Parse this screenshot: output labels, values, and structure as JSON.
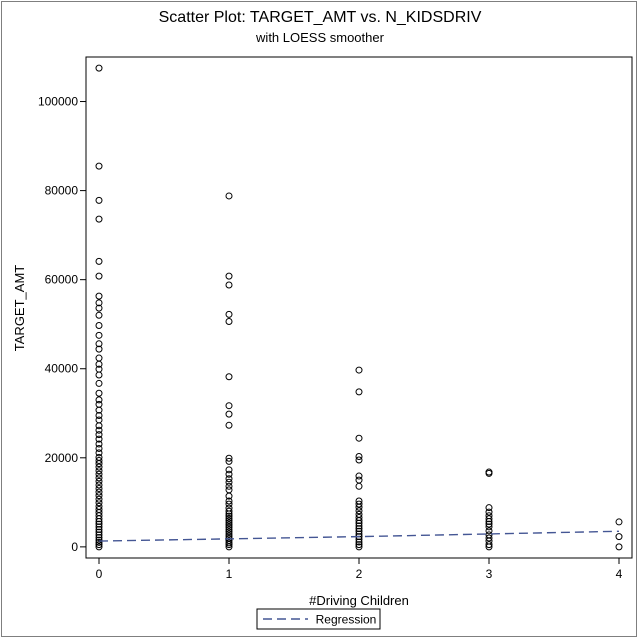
{
  "chart_data": {
    "type": "scatter",
    "title": "Scatter Plot: TARGET_AMT vs. N_KIDSDRIV",
    "subtitle": "with LOESS smoother",
    "xlabel": "#Driving Children",
    "ylabel": "TARGET_AMT",
    "xlim": [
      -0.1,
      4.1
    ],
    "ylim": [
      -2500,
      110000
    ],
    "x_ticks": [
      0,
      1,
      2,
      3,
      4
    ],
    "y_ticks": [
      0,
      20000,
      40000,
      60000,
      80000,
      100000
    ],
    "grid": false,
    "legend_position": "bottom-center",
    "colors": {
      "points": "#000000",
      "regression": "#445694",
      "frame": "#7f7f7f"
    },
    "series": [
      {
        "type": "scatter",
        "points": [
          [
            0,
            107500
          ],
          [
            0,
            85500
          ],
          [
            0,
            77800
          ],
          [
            0,
            73600
          ],
          [
            0,
            64100
          ],
          [
            0,
            60800
          ],
          [
            0,
            56300
          ],
          [
            0,
            54800
          ],
          [
            0,
            53600
          ],
          [
            0,
            52000
          ],
          [
            0,
            49700
          ],
          [
            0,
            47500
          ],
          [
            0,
            45600
          ],
          [
            0,
            44400
          ],
          [
            0,
            42400
          ],
          [
            0,
            41000
          ],
          [
            0,
            39900
          ],
          [
            0,
            38600
          ],
          [
            0,
            36700
          ],
          [
            0,
            34500
          ],
          [
            0,
            33000
          ],
          [
            0,
            32000
          ],
          [
            0,
            30700
          ],
          [
            0,
            29500
          ],
          [
            0,
            28500
          ],
          [
            0,
            27200
          ],
          [
            0,
            26200
          ],
          [
            0,
            25200
          ],
          [
            0,
            24200
          ],
          [
            0,
            23100
          ],
          [
            0,
            22100
          ],
          [
            0,
            21100
          ],
          [
            0,
            20100
          ],
          [
            0,
            19400
          ],
          [
            0,
            18700
          ],
          [
            0,
            17900
          ],
          [
            0,
            17100
          ],
          [
            0,
            16300
          ],
          [
            0,
            15500
          ],
          [
            0,
            14700
          ],
          [
            0,
            13900
          ],
          [
            0,
            13100
          ],
          [
            0,
            12300
          ],
          [
            0,
            11500
          ],
          [
            0,
            10700
          ],
          [
            0,
            9900
          ],
          [
            0,
            9100
          ],
          [
            0,
            8400
          ],
          [
            0,
            7700
          ],
          [
            0,
            7000
          ],
          [
            0,
            6300
          ],
          [
            0,
            5700
          ],
          [
            0,
            5100
          ],
          [
            0,
            4500
          ],
          [
            0,
            3900
          ],
          [
            0,
            3300
          ],
          [
            0,
            2700
          ],
          [
            0,
            2100
          ],
          [
            0,
            1500
          ],
          [
            0,
            1000
          ],
          [
            0,
            500
          ],
          [
            0,
            0
          ],
          [
            1,
            78800
          ],
          [
            1,
            60800
          ],
          [
            1,
            58800
          ],
          [
            1,
            52200
          ],
          [
            1,
            50600
          ],
          [
            1,
            38200
          ],
          [
            1,
            31700
          ],
          [
            1,
            29800
          ],
          [
            1,
            27300
          ],
          [
            1,
            19900
          ],
          [
            1,
            19200
          ],
          [
            1,
            17300
          ],
          [
            1,
            16300
          ],
          [
            1,
            15300
          ],
          [
            1,
            14500
          ],
          [
            1,
            13600
          ],
          [
            1,
            12800
          ],
          [
            1,
            11400
          ],
          [
            1,
            10300
          ],
          [
            1,
            9600
          ],
          [
            1,
            8700
          ],
          [
            1,
            8000
          ],
          [
            1,
            7400
          ],
          [
            1,
            6900
          ],
          [
            1,
            6400
          ],
          [
            1,
            5900
          ],
          [
            1,
            5400
          ],
          [
            1,
            4900
          ],
          [
            1,
            4400
          ],
          [
            1,
            3900
          ],
          [
            1,
            3400
          ],
          [
            1,
            2900
          ],
          [
            1,
            2400
          ],
          [
            1,
            1900
          ],
          [
            1,
            1400
          ],
          [
            1,
            900
          ],
          [
            1,
            500
          ],
          [
            1,
            0
          ],
          [
            2,
            39700
          ],
          [
            2,
            34800
          ],
          [
            2,
            24400
          ],
          [
            2,
            20300
          ],
          [
            2,
            19500
          ],
          [
            2,
            15900
          ],
          [
            2,
            15000
          ],
          [
            2,
            13600
          ],
          [
            2,
            10300
          ],
          [
            2,
            9600
          ],
          [
            2,
            8900
          ],
          [
            2,
            8100
          ],
          [
            2,
            7300
          ],
          [
            2,
            6600
          ],
          [
            2,
            5900
          ],
          [
            2,
            5300
          ],
          [
            2,
            4700
          ],
          [
            2,
            4100
          ],
          [
            2,
            3500
          ],
          [
            2,
            2900
          ],
          [
            2,
            2300
          ],
          [
            2,
            1700
          ],
          [
            2,
            1100
          ],
          [
            2,
            500
          ],
          [
            2,
            0
          ],
          [
            3,
            16800
          ],
          [
            3,
            16500
          ],
          [
            3,
            8800
          ],
          [
            3,
            7800
          ],
          [
            3,
            7000
          ],
          [
            3,
            6300
          ],
          [
            3,
            5700
          ],
          [
            3,
            5100
          ],
          [
            3,
            4500
          ],
          [
            3,
            3600
          ],
          [
            3,
            2700
          ],
          [
            3,
            2000
          ],
          [
            3,
            1300
          ],
          [
            3,
            500
          ],
          [
            3,
            0
          ],
          [
            4,
            5600
          ],
          [
            4,
            2300
          ],
          [
            4,
            0
          ]
        ]
      },
      {
        "name": "Regression",
        "type": "line",
        "style": "dashed",
        "x": [
          0,
          1,
          2,
          3,
          4
        ],
        "y": [
          1300,
          1800,
          2300,
          2900,
          3500
        ]
      }
    ]
  }
}
